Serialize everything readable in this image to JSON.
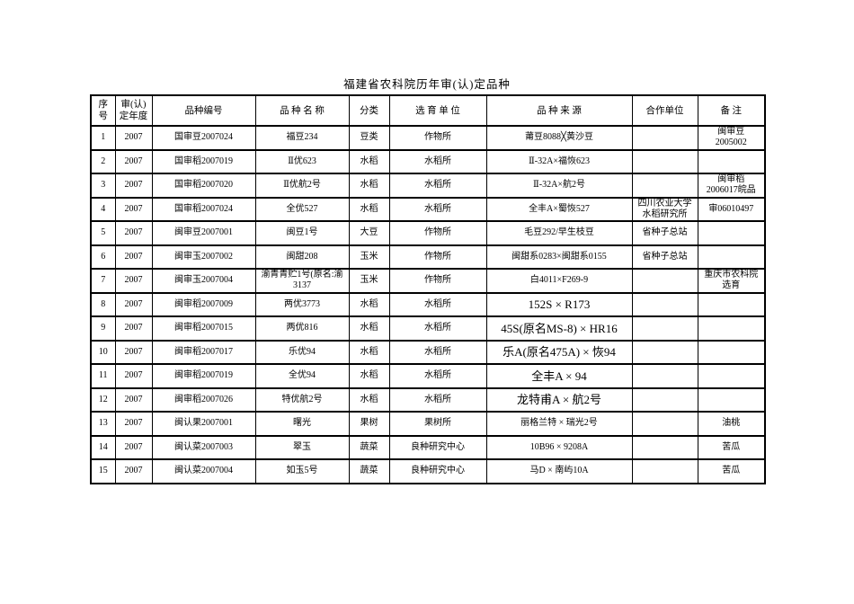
{
  "title": "福建省农科院历年审(认)定品种",
  "table": {
    "headers": [
      {
        "key": "no",
        "label": "序\n号"
      },
      {
        "key": "year",
        "label": "审(认)\n定年度"
      },
      {
        "key": "code",
        "label": "品种编号"
      },
      {
        "key": "name",
        "label": "品 种 名 称"
      },
      {
        "key": "category",
        "label": "分类"
      },
      {
        "key": "breeder",
        "label": "选 育 单 位"
      },
      {
        "key": "source",
        "label": "品 种 来 源"
      },
      {
        "key": "partner",
        "label": "合作单位"
      },
      {
        "key": "remark",
        "label": "备 注"
      }
    ],
    "rows": [
      {
        "no": "1",
        "year": "2007",
        "code": "国审豆2007024",
        "name": "福豆234",
        "category": "豆类",
        "breeder": "作物所",
        "source": "莆豆8088╳黄沙豆",
        "partner": "",
        "remark": "闽审豆\n2005002",
        "source_large": false
      },
      {
        "no": "2",
        "year": "2007",
        "code": "国审稻2007019",
        "name": "Ⅱ优623",
        "category": "水稻",
        "breeder": "水稻所",
        "source": "Ⅱ-32A×福恢623",
        "partner": "",
        "remark": "",
        "source_large": false
      },
      {
        "no": "3",
        "year": "2007",
        "code": "国审稻2007020",
        "name": "Ⅱ优航2号",
        "category": "水稻",
        "breeder": "水稻所",
        "source": "Ⅱ-32A×航2号",
        "partner": "",
        "remark": "闽审稻\n2006017皖品",
        "source_large": false
      },
      {
        "no": "4",
        "year": "2007",
        "code": "国审稻2007024",
        "name": "全优527",
        "category": "水稻",
        "breeder": "水稻所",
        "source": "全丰A×蜀恢527",
        "partner": "四川农业大学\n水稻研究所",
        "remark": "审06010497",
        "source_large": false
      },
      {
        "no": "5",
        "year": "2007",
        "code": "闽审豆2007001",
        "name": "闽豆1号",
        "category": "大豆",
        "breeder": "作物所",
        "source": "毛豆292/早生枝豆",
        "partner": "省种子总站",
        "remark": "",
        "source_large": false
      },
      {
        "no": "6",
        "year": "2007",
        "code": "闽审玉2007002",
        "name": "闽甜208",
        "category": "玉米",
        "breeder": "作物所",
        "source": "闽甜系0283×闽甜系0155",
        "partner": "省种子总站",
        "remark": "",
        "source_large": false
      },
      {
        "no": "7",
        "year": "2007",
        "code": "闽审玉2007004",
        "name": "渝青青贮1号(原名:渝\n3137",
        "category": "玉米",
        "breeder": "作物所",
        "source": "白4011×F269-9",
        "partner": "",
        "remark": "重庆市农科院\n选育",
        "source_large": false
      },
      {
        "no": "8",
        "year": "2007",
        "code": "闽审稻2007009",
        "name": "两优3773",
        "category": "水稻",
        "breeder": "水稻所",
        "source": "152S × R173",
        "partner": "",
        "remark": "",
        "source_large": true
      },
      {
        "no": "9",
        "year": "2007",
        "code": "闽审稻2007015",
        "name": "两优816",
        "category": "水稻",
        "breeder": "水稻所",
        "source": "45S(原名MS-8) × HR16",
        "partner": "",
        "remark": "",
        "source_large": true
      },
      {
        "no": "10",
        "year": "2007",
        "code": "闽审稻2007017",
        "name": "乐优94",
        "category": "水稻",
        "breeder": "水稻所",
        "source": "乐A(原名475A) × 恢94",
        "partner": "",
        "remark": "",
        "source_large": true
      },
      {
        "no": "11",
        "year": "2007",
        "code": "闽审稻2007019",
        "name": "全优94",
        "category": "水稻",
        "breeder": "水稻所",
        "source": "全丰A × 94",
        "partner": "",
        "remark": "",
        "source_large": true
      },
      {
        "no": "12",
        "year": "2007",
        "code": "闽审稻2007026",
        "name": "特优航2号",
        "category": "水稻",
        "breeder": "水稻所",
        "source": "龙特甫A × 航2号",
        "partner": "",
        "remark": "",
        "source_large": true
      },
      {
        "no": "13",
        "year": "2007",
        "code": "闽认果2007001",
        "name": "曙光",
        "category": "果树",
        "breeder": "果树所",
        "source": "丽格兰特 × 瑞光2号",
        "partner": "",
        "remark": "油桃",
        "source_large": false
      },
      {
        "no": "14",
        "year": "2007",
        "code": "闽认菜2007003",
        "name": "翠玉",
        "category": "蔬菜",
        "breeder": "良种研究中心",
        "source": "10B96 × 9208A",
        "partner": "",
        "remark": "苦瓜",
        "source_large": false
      },
      {
        "no": "15",
        "year": "2007",
        "code": "闽认菜2007004",
        "name": "如玉5号",
        "category": "蔬菜",
        "breeder": "良种研究中心",
        "source": "马D × 南屿10A",
        "partner": "",
        "remark": "苦瓜",
        "source_large": false
      }
    ]
  }
}
